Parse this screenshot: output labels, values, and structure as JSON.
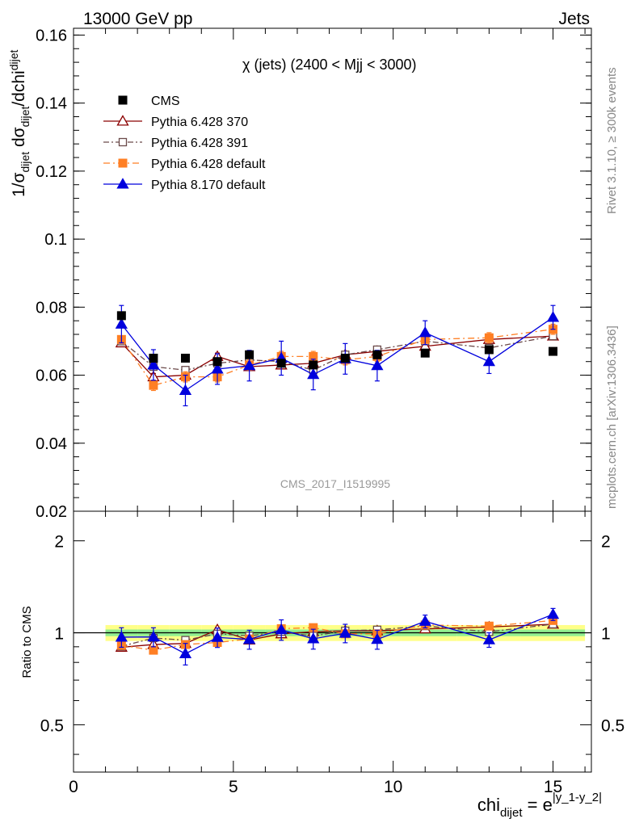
{
  "header": {
    "energy_label": "13000 GeV pp",
    "process_label": "Jets",
    "side_label_top": "Rivet 3.1.10, ≥ 300k events",
    "side_label_bottom": "mcplots.cern.ch [arXiv:1306.3436]",
    "analysis_label": "CMS_2017_I1519995"
  },
  "main_panel": {
    "title_prefix": "χ",
    "title_rest": " (jets) (2400 < Mjj < 3000)"
  },
  "ratio_panel": {
    "ylabel": "Ratio to CMS",
    "yticks": [
      0.5,
      1,
      2
    ]
  },
  "axis_text": {
    "y_main": [
      "1/σ",
      "dijet",
      " dσ",
      "dijet",
      "/dchi",
      "dijet"
    ],
    "x": [
      "chi",
      "dijet",
      " = e",
      "|y_1-y_2|"
    ]
  },
  "chart_data": {
    "type": "scatter",
    "x_range": [
      0,
      16.2
    ],
    "xticks": [
      0,
      5,
      10,
      15
    ],
    "y_range": [
      0.02,
      0.162
    ],
    "yticks": [
      0.02,
      0.04,
      0.06,
      0.08,
      0.1,
      0.12,
      0.14,
      0.16
    ],
    "ratio_range": [
      0.35,
      2.5
    ],
    "ratio_log_scale": true,
    "legend_position": "top-left",
    "x": [
      1.5,
      2.5,
      3.5,
      4.5,
      5.5,
      6.5,
      7.5,
      8.5,
      9.5,
      11,
      13,
      15
    ],
    "data": {
      "name": "CMS",
      "color": "#000000",
      "marker": "square-filled",
      "values": [
        0.0775,
        0.065,
        0.065,
        0.064,
        0.066,
        0.0635,
        0.063,
        0.065,
        0.066,
        0.0665,
        0.0675,
        0.067
      ],
      "band_inner": 0.025,
      "band_outer": 0.06
    },
    "series": [
      {
        "name": "Pythia 6.428 370",
        "color": "#8b0000",
        "marker": "triangle-open",
        "dash": "",
        "values": [
          0.0695,
          0.0595,
          0.06,
          0.0655,
          0.0625,
          0.063,
          0.0635,
          0.066,
          0.067,
          0.0685,
          0.0705,
          0.0715
        ],
        "errors": [
          0.001,
          0.001,
          0.001,
          0.001,
          0.001,
          0.001,
          0.001,
          0.001,
          0.001,
          0.001,
          0.001,
          0.001
        ]
      },
      {
        "name": "Pythia 6.428 391",
        "color": "#6b4a4a",
        "marker": "square-open",
        "dash": "7,3,2,3",
        "values": [
          0.07,
          0.0625,
          0.0615,
          0.0635,
          0.0645,
          0.064,
          0.0615,
          0.066,
          0.0675,
          0.07,
          0.068,
          0.0715
        ],
        "errors": [
          0.001,
          0.001,
          0.001,
          0.001,
          0.001,
          0.001,
          0.001,
          0.001,
          0.001,
          0.001,
          0.001,
          0.001
        ]
      },
      {
        "name": "Pythia 6.428 default",
        "color": "#ff7f24",
        "marker": "square-filled",
        "dash": "8,4,2,4",
        "values": [
          0.0705,
          0.057,
          0.0595,
          0.0595,
          0.063,
          0.0655,
          0.0655,
          0.0645,
          0.0655,
          0.0705,
          0.071,
          0.0735
        ],
        "errors": [
          0.001,
          0.0015,
          0.0015,
          0.0015,
          0.0015,
          0.0015,
          0.0015,
          0.0015,
          0.0015,
          0.0015,
          0.0015,
          0.0015
        ]
      },
      {
        "name": "Pythia 8.170 default",
        "color": "#0000dd",
        "marker": "triangle-filled",
        "dash": "",
        "values": [
          0.075,
          0.063,
          0.0555,
          0.0618,
          0.0628,
          0.065,
          0.0602,
          0.0648,
          0.0628,
          0.0725,
          0.064,
          0.077
        ],
        "errors": [
          0.0055,
          0.0045,
          0.0045,
          0.0045,
          0.0045,
          0.005,
          0.0045,
          0.0045,
          0.0045,
          0.0035,
          0.0035,
          0.0035
        ]
      }
    ]
  }
}
